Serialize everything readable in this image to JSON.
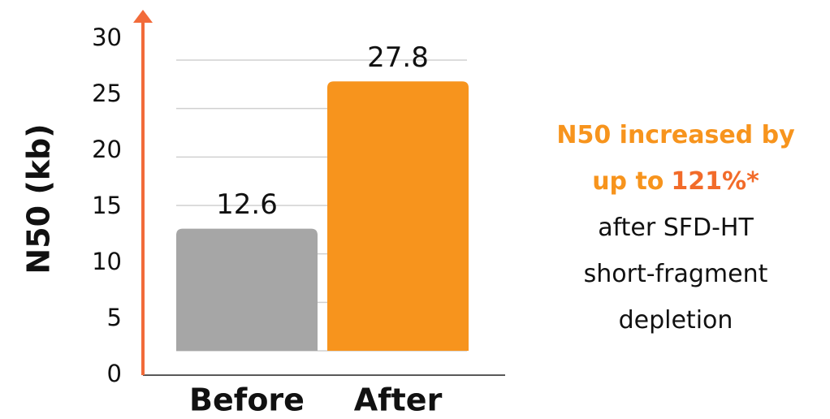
{
  "chart_data": {
    "type": "bar",
    "y_label": "N50 (kb)",
    "categories": [
      "Before",
      "After"
    ],
    "values": [
      12.6,
      27.8
    ],
    "colors": [
      "#a6a6a6",
      "#f7941d"
    ],
    "axis_color": "#f26b3a",
    "ylim": [
      0,
      30
    ],
    "yticks": [
      0,
      5,
      10,
      15,
      20,
      25,
      30
    ],
    "grid": true,
    "annotation": [
      [
        "N50 increased by"
      ],
      [
        "up to",
        "121%*"
      ],
      [
        "after SFD-HT"
      ],
      [
        "short-fragment"
      ],
      [
        "depletion"
      ]
    ]
  }
}
